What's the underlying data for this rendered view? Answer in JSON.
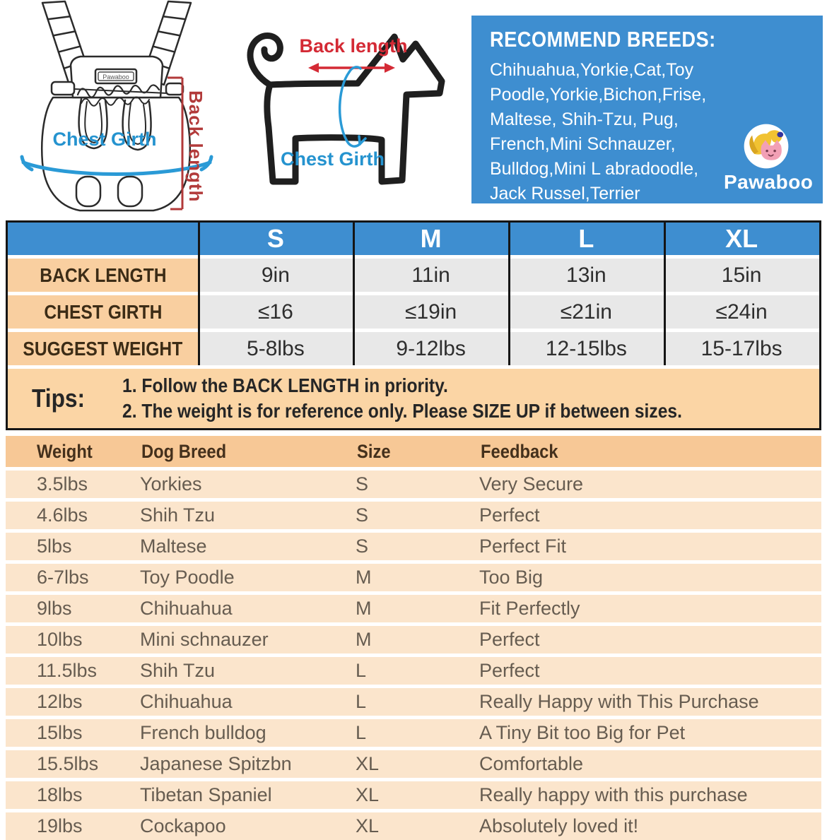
{
  "carrier_diagram": {
    "chest_girth_label": "Chest Girth",
    "back_length_label": "Back length",
    "brand_tag": "Pawaboo"
  },
  "dog_diagram": {
    "back_length_label": "Back length",
    "chest_girth_label": "Chest Girth"
  },
  "breeds_panel": {
    "title": "RECOMMEND BREEDS:",
    "breeds": "Chihuahua,Yorkie,Cat,Toy\nPoodle,Yorkie,Bichon,Frise,\nMaltese, Shih-Tzu, Pug,\nFrench,Mini Schnauzer,\nBulldog,Mini L abradoodle,\nJack Russel,Terrier",
    "logo_text": "Pawaboo"
  },
  "size_table": {
    "columns": [
      "S",
      "M",
      "L",
      "XL"
    ],
    "rows": [
      {
        "label": "BACK LENGTH",
        "values": [
          "9in",
          "11in",
          "13in",
          "15in"
        ]
      },
      {
        "label": "CHEST GIRTH",
        "values": [
          "≤16",
          "≤19in",
          "≤21in",
          "≤24in"
        ]
      },
      {
        "label": "SUGGEST WEIGHT",
        "values": [
          "5-8lbs",
          "9-12lbs",
          "12-15lbs",
          "15-17lbs"
        ]
      }
    ]
  },
  "tips": {
    "label": "Tips:",
    "line1": "1. Follow the BACK LENGTH in priority.",
    "line2": "2. The weight is for reference only. Please SIZE UP if between sizes."
  },
  "feedback_table": {
    "columns": [
      "Weight",
      "Dog Breed",
      "Size",
      "Feedback"
    ],
    "rows": [
      [
        "3.5lbs",
        "Yorkies",
        "S",
        "Very Secure"
      ],
      [
        "4.6lbs",
        "Shih Tzu",
        "S",
        "Perfect"
      ],
      [
        "5lbs",
        "Maltese",
        "S",
        "Perfect Fit"
      ],
      [
        "6-7lbs",
        "Toy Poodle",
        "M",
        "Too Big"
      ],
      [
        "9lbs",
        "Chihuahua",
        "M",
        "Fit Perfectly"
      ],
      [
        "10lbs",
        "Mini schnauzer",
        "M",
        "Perfect"
      ],
      [
        "11.5lbs",
        "Shih Tzu",
        "L",
        "Perfect"
      ],
      [
        "12lbs",
        "Chihuahua",
        "L",
        "Really Happy with  This Purchase"
      ],
      [
        "15lbs",
        "French bulldog",
        "L",
        "A Tiny Bit too Big for Pet"
      ],
      [
        "15.5lbs",
        "Japanese Spitzbn",
        "XL",
        "Comfortable"
      ],
      [
        "18lbs",
        "Tibetan Spaniel",
        "XL",
        "Really happy with this purchase"
      ],
      [
        "19lbs",
        "Cockapoo",
        "XL",
        "Absolutely loved it!"
      ]
    ]
  },
  "colors": {
    "panel_blue": "#3e8ed0",
    "peach_label": "#f9cfa0",
    "tips_bg": "#fbd5a5",
    "gray_cell": "#e8e8e8",
    "feedback_header_bg": "#f7c896",
    "feedback_row_bg": "#fbe5cc",
    "measure_red": "#d42a35",
    "bracket_red": "#b23a3a",
    "girth_blue": "#2a9ad6"
  }
}
